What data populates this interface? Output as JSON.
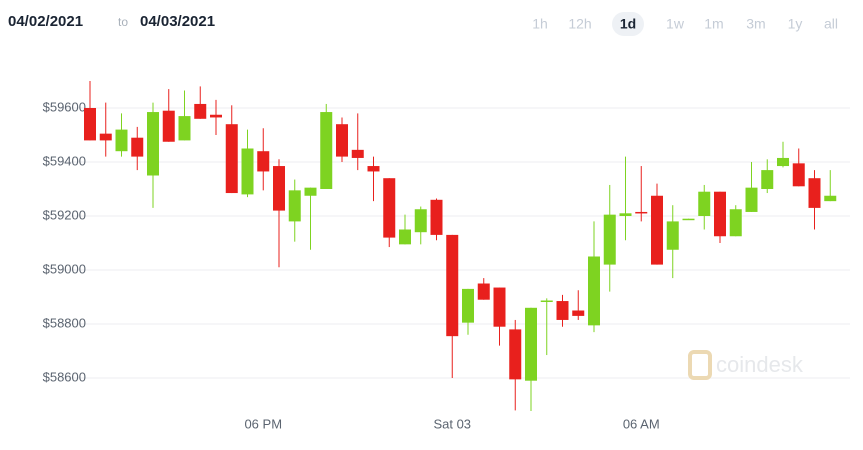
{
  "header": {
    "from": "04/02/2021",
    "separator": "to",
    "to": "04/03/2021"
  },
  "ranges": [
    "1h",
    "12h",
    "1d",
    "1w",
    "1m",
    "3m",
    "1y",
    "all"
  ],
  "selected_range": "1d",
  "watermark": "coindesk",
  "chart_data": {
    "type": "candlestick",
    "up_color": "#7ed321",
    "down_color": "#e8201d",
    "grid": true,
    "categories": [
      null,
      null,
      null,
      null,
      null,
      null,
      null,
      null,
      null,
      null,
      null,
      "06 PM",
      null,
      null,
      null,
      null,
      null,
      null,
      null,
      null,
      null,
      null,
      null,
      "Sat 03",
      null,
      null,
      null,
      null,
      null,
      null,
      null,
      null,
      null,
      null,
      null,
      "06 AM",
      null,
      null,
      null,
      null,
      null,
      null,
      null,
      null,
      null,
      null,
      null,
      null
    ],
    "open": [
      59600,
      59505,
      59440,
      59490,
      59350,
      59590,
      59480,
      59615,
      59575,
      59540,
      59280,
      59440,
      59385,
      59180,
      59275,
      59300,
      59540,
      59445,
      59385,
      59340,
      59095,
      59140,
      59260,
      59130,
      58805,
      58950,
      58935,
      58780,
      58590,
      58885,
      58885,
      58850,
      58795,
      59020,
      59200,
      59215,
      59275,
      59075,
      59185,
      59200,
      59290,
      59125,
      59215,
      59300,
      59385,
      59395,
      59340,
      59255
    ],
    "high": [
      59700,
      59620,
      59580,
      59530,
      59620,
      59670,
      59665,
      59680,
      59630,
      59610,
      59520,
      59525,
      59410,
      59335,
      59305,
      59615,
      59565,
      59580,
      59420,
      59340,
      59205,
      59235,
      59265,
      59130,
      58930,
      58970,
      58935,
      58815,
      58860,
      58895,
      58908,
      58925,
      59180,
      59315,
      59420,
      59385,
      59320,
      59240,
      59190,
      59315,
      59290,
      59240,
      59400,
      59410,
      59475,
      59450,
      59370,
      59370
    ],
    "low": [
      59480,
      59420,
      59420,
      59370,
      59230,
      59475,
      59480,
      59560,
      59500,
      59285,
      59270,
      59295,
      59010,
      59105,
      59075,
      59300,
      59400,
      59370,
      59255,
      59085,
      59095,
      59095,
      59110,
      58600,
      58760,
      58890,
      58720,
      58480,
      58478,
      58685,
      58790,
      58815,
      58770,
      58920,
      59110,
      59180,
      59020,
      58970,
      59185,
      59150,
      59100,
      59125,
      59215,
      59285,
      59380,
      59310,
      59150,
      59255
    ],
    "close": [
      59480,
      59480,
      59520,
      59420,
      59585,
      59475,
      59570,
      59560,
      59565,
      59285,
      59450,
      59365,
      59220,
      59295,
      59305,
      59585,
      59420,
      59415,
      59365,
      59120,
      59150,
      59225,
      59130,
      58755,
      58930,
      58890,
      58790,
      58595,
      58860,
      58887,
      58815,
      58830,
      59050,
      59205,
      59210,
      59210,
      59020,
      59180,
      59190,
      59290,
      59125,
      59225,
      59305,
      59370,
      59415,
      59310,
      59230,
      59275
    ],
    "ylim": [
      58450,
      59780
    ],
    "yticks": [
      {
        "value": 58600,
        "label": "$58600"
      },
      {
        "value": 58800,
        "label": "$58800"
      },
      {
        "value": 59000,
        "label": "$59000"
      },
      {
        "value": 59200,
        "label": "$59200"
      },
      {
        "value": 59400,
        "label": "$59400"
      },
      {
        "value": 59600,
        "label": "$59600"
      }
    ]
  }
}
